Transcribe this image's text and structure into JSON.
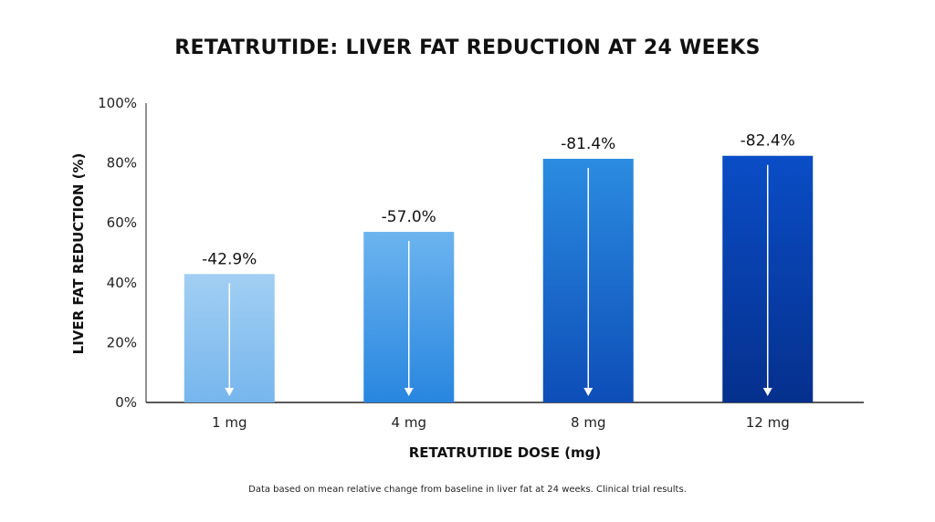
{
  "chart_data": {
    "type": "bar",
    "title": "RETATRUTIDE: LIVER FAT REDUCTION AT 24 WEEKS",
    "xlabel": "RETATRUTIDE DOSE (mg)",
    "ylabel": "LIVER FAT REDUCTION (%)",
    "categories": [
      "1 mg",
      "4 mg",
      "8 mg",
      "12 mg"
    ],
    "values": [
      -42.9,
      -57.0,
      -81.4,
      -82.4
    ],
    "data_labels": [
      "-42.9%",
      "-57.0%",
      "-81.4%",
      "-82.4%"
    ],
    "ylim": [
      0,
      100
    ],
    "yticks": [
      "0%",
      "20%",
      "40%",
      "60%",
      "80%",
      "100%"
    ],
    "grid": false,
    "bar_colors": [
      [
        "#a2cff3",
        "#76b6ed"
      ],
      [
        "#6cb4ef",
        "#2886df"
      ],
      [
        "#2b8ce1",
        "#0d4db7"
      ],
      [
        "#0a4dc6",
        "#05308d"
      ]
    ],
    "annotation": "Data based on mean relative change from baseline in liver fat at 24 weeks. Clinical trial results."
  }
}
